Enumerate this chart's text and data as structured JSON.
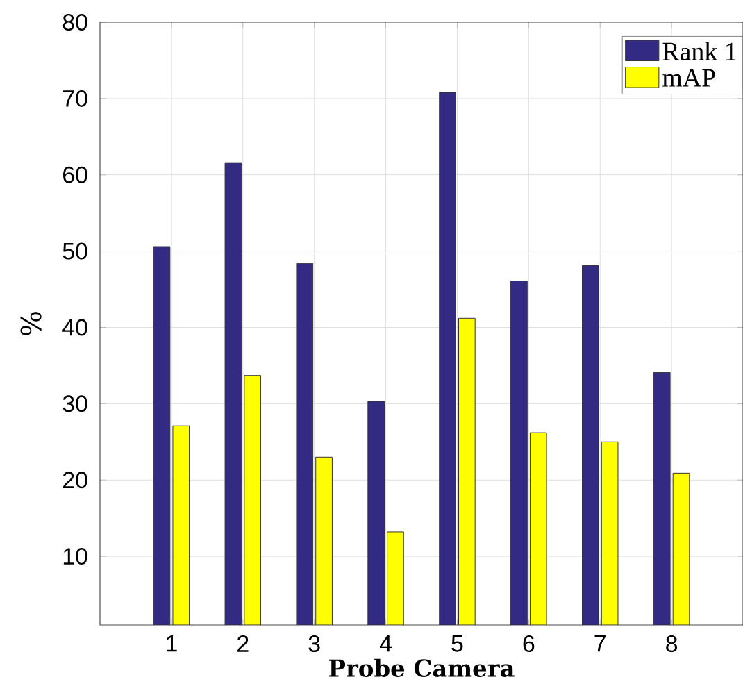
{
  "chart_data": {
    "type": "bar",
    "xlabel": "Probe Camera",
    "ylabel": "%",
    "categories": [
      "1",
      "2",
      "3",
      "4",
      "5",
      "6",
      "7",
      "8"
    ],
    "series": [
      {
        "name": "Rank 1",
        "color": "#332a84",
        "values": [
          50.6,
          61.6,
          48.4,
          30.3,
          70.8,
          46.1,
          48.1,
          34.1
        ]
      },
      {
        "name": "mAP",
        "color": "#ffff00",
        "values": [
          27.1,
          33.7,
          23.0,
          13.2,
          41.2,
          26.2,
          25.0,
          20.9
        ]
      }
    ],
    "ylim": [
      1,
      80
    ],
    "yticks": [
      10,
      20,
      30,
      40,
      50,
      60,
      70,
      80
    ],
    "grid": true,
    "legend": "top right"
  }
}
